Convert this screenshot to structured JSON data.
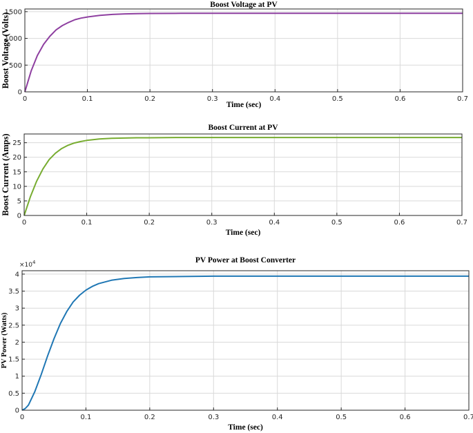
{
  "chart_data": [
    {
      "type": "line",
      "title": "Boost Voltage at PV",
      "xlabel": "Time (sec)",
      "ylabel": "Boost Voltage (Volts)",
      "xlim": [
        0,
        0.7
      ],
      "ylim": [
        0,
        1550
      ],
      "xticks": [
        0,
        0.1,
        0.2,
        0.3,
        0.4,
        0.5,
        0.6,
        0.7
      ],
      "xtick_labels": [
        "0",
        "0.1",
        "0.2",
        "0.3",
        "0.4",
        "0.5",
        "0.6",
        "0.7"
      ],
      "yticks": [
        0,
        500,
        1000,
        1500
      ],
      "ytick_labels": [
        "0",
        "500",
        "1000",
        "1500"
      ],
      "grid": true,
      "color": "#8e3fa0",
      "series": [
        {
          "x": [
            0,
            0.01,
            0.02,
            0.03,
            0.04,
            0.05,
            0.06,
            0.07,
            0.08,
            0.09,
            0.1,
            0.12,
            0.14,
            0.16,
            0.18,
            0.2,
            0.25,
            0.3,
            0.4,
            0.5,
            0.6,
            0.7
          ],
          "y": [
            0,
            390,
            680,
            890,
            1040,
            1160,
            1240,
            1300,
            1350,
            1380,
            1400,
            1430,
            1448,
            1458,
            1463,
            1466,
            1468,
            1469,
            1469,
            1469,
            1469,
            1469
          ]
        }
      ]
    },
    {
      "type": "line",
      "title": "Boost Current at PV",
      "xlabel": "Time (sec)",
      "ylabel": "Boost Current (Amps)",
      "xlim": [
        0,
        0.7
      ],
      "ylim": [
        0,
        28
      ],
      "xticks": [
        0,
        0.1,
        0.2,
        0.3,
        0.4,
        0.5,
        0.6,
        0.7
      ],
      "xtick_labels": [
        "0",
        "0.1",
        "0.2",
        "0.3",
        "0.4",
        "0.5",
        "0.6",
        "0.7"
      ],
      "yticks": [
        0,
        5,
        10,
        15,
        20,
        25
      ],
      "ytick_labels": [
        "0",
        "5",
        "10",
        "15",
        "20",
        "25"
      ],
      "grid": true,
      "color": "#77ac30",
      "series": [
        {
          "x": [
            0,
            0.01,
            0.02,
            0.03,
            0.04,
            0.05,
            0.06,
            0.07,
            0.08,
            0.09,
            0.1,
            0.12,
            0.14,
            0.16,
            0.18,
            0.2,
            0.25,
            0.3,
            0.4,
            0.5,
            0.6,
            0.7
          ],
          "y": [
            0,
            6.5,
            11.8,
            16.0,
            19.2,
            21.4,
            23.0,
            24.1,
            24.9,
            25.4,
            25.8,
            26.3,
            26.5,
            26.6,
            26.7,
            26.7,
            26.8,
            26.8,
            26.8,
            26.8,
            26.8,
            26.8
          ]
        }
      ]
    },
    {
      "type": "line",
      "title": "PV Power at Boost Converter",
      "xlabel": "Time (sec)",
      "ylabel": "PV Power (Watts)",
      "xlim": [
        0,
        0.7
      ],
      "ylim": [
        0,
        41000
      ],
      "scale_exponent": "4",
      "xticks": [
        0,
        0.1,
        0.2,
        0.3,
        0.4,
        0.5,
        0.6,
        0.7
      ],
      "xtick_labels": [
        "0",
        "0.1",
        "0.2",
        "0.3",
        "0.4",
        "0.5",
        "0.6",
        "0.7"
      ],
      "yticks": [
        0,
        5000,
        10000,
        15000,
        20000,
        25000,
        30000,
        35000,
        40000
      ],
      "ytick_labels": [
        "0",
        "0.5",
        "1",
        "1.5",
        "2",
        "2.5",
        "3",
        "3.5",
        "4"
      ],
      "grid": true,
      "color": "#1f77b4",
      "series": [
        {
          "x": [
            0,
            0.005,
            0.01,
            0.02,
            0.03,
            0.04,
            0.05,
            0.06,
            0.07,
            0.08,
            0.09,
            0.1,
            0.11,
            0.12,
            0.14,
            0.16,
            0.18,
            0.2,
            0.25,
            0.3,
            0.4,
            0.5,
            0.6,
            0.7
          ],
          "y": [
            0,
            500,
            1500,
            5500,
            10500,
            16000,
            21000,
            25500,
            29000,
            31800,
            33800,
            35300,
            36400,
            37200,
            38200,
            38700,
            39000,
            39200,
            39300,
            39400,
            39400,
            39400,
            39400,
            39400
          ]
        }
      ]
    }
  ]
}
